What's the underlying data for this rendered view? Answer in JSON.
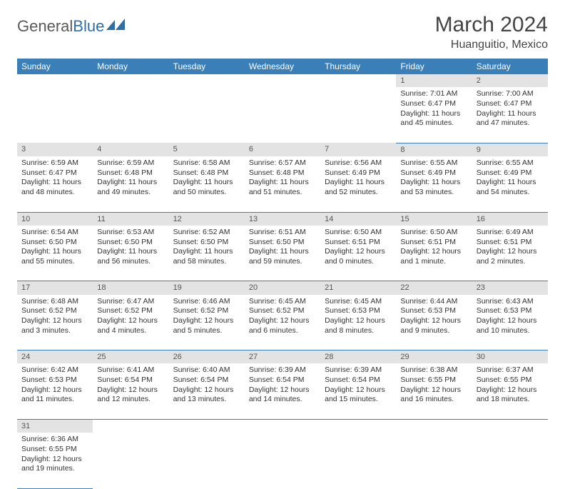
{
  "brand": {
    "part1": "General",
    "part2": "Blue"
  },
  "title": "March 2024",
  "location": "Huanguitio, Mexico",
  "colors": {
    "header_bg": "#3b7fb8",
    "header_text": "#ffffff",
    "daynum_bg": "#e3e3e3",
    "border": "#3b7fb8",
    "brand_blue": "#2f6fa7",
    "text": "#333333"
  },
  "weekdays": [
    "Sunday",
    "Monday",
    "Tuesday",
    "Wednesday",
    "Thursday",
    "Friday",
    "Saturday"
  ],
  "weeks": [
    [
      null,
      null,
      null,
      null,
      null,
      {
        "d": "1",
        "sr": "7:01 AM",
        "ss": "6:47 PM",
        "dl": "11 hours and 45 minutes."
      },
      {
        "d": "2",
        "sr": "7:00 AM",
        "ss": "6:47 PM",
        "dl": "11 hours and 47 minutes."
      }
    ],
    [
      {
        "d": "3",
        "sr": "6:59 AM",
        "ss": "6:47 PM",
        "dl": "11 hours and 48 minutes."
      },
      {
        "d": "4",
        "sr": "6:59 AM",
        "ss": "6:48 PM",
        "dl": "11 hours and 49 minutes."
      },
      {
        "d": "5",
        "sr": "6:58 AM",
        "ss": "6:48 PM",
        "dl": "11 hours and 50 minutes."
      },
      {
        "d": "6",
        "sr": "6:57 AM",
        "ss": "6:48 PM",
        "dl": "11 hours and 51 minutes."
      },
      {
        "d": "7",
        "sr": "6:56 AM",
        "ss": "6:49 PM",
        "dl": "11 hours and 52 minutes."
      },
      {
        "d": "8",
        "sr": "6:55 AM",
        "ss": "6:49 PM",
        "dl": "11 hours and 53 minutes."
      },
      {
        "d": "9",
        "sr": "6:55 AM",
        "ss": "6:49 PM",
        "dl": "11 hours and 54 minutes."
      }
    ],
    [
      {
        "d": "10",
        "sr": "6:54 AM",
        "ss": "6:50 PM",
        "dl": "11 hours and 55 minutes."
      },
      {
        "d": "11",
        "sr": "6:53 AM",
        "ss": "6:50 PM",
        "dl": "11 hours and 56 minutes."
      },
      {
        "d": "12",
        "sr": "6:52 AM",
        "ss": "6:50 PM",
        "dl": "11 hours and 58 minutes."
      },
      {
        "d": "13",
        "sr": "6:51 AM",
        "ss": "6:50 PM",
        "dl": "11 hours and 59 minutes."
      },
      {
        "d": "14",
        "sr": "6:50 AM",
        "ss": "6:51 PM",
        "dl": "12 hours and 0 minutes."
      },
      {
        "d": "15",
        "sr": "6:50 AM",
        "ss": "6:51 PM",
        "dl": "12 hours and 1 minute."
      },
      {
        "d": "16",
        "sr": "6:49 AM",
        "ss": "6:51 PM",
        "dl": "12 hours and 2 minutes."
      }
    ],
    [
      {
        "d": "17",
        "sr": "6:48 AM",
        "ss": "6:52 PM",
        "dl": "12 hours and 3 minutes."
      },
      {
        "d": "18",
        "sr": "6:47 AM",
        "ss": "6:52 PM",
        "dl": "12 hours and 4 minutes."
      },
      {
        "d": "19",
        "sr": "6:46 AM",
        "ss": "6:52 PM",
        "dl": "12 hours and 5 minutes."
      },
      {
        "d": "20",
        "sr": "6:45 AM",
        "ss": "6:52 PM",
        "dl": "12 hours and 6 minutes."
      },
      {
        "d": "21",
        "sr": "6:45 AM",
        "ss": "6:53 PM",
        "dl": "12 hours and 8 minutes."
      },
      {
        "d": "22",
        "sr": "6:44 AM",
        "ss": "6:53 PM",
        "dl": "12 hours and 9 minutes."
      },
      {
        "d": "23",
        "sr": "6:43 AM",
        "ss": "6:53 PM",
        "dl": "12 hours and 10 minutes."
      }
    ],
    [
      {
        "d": "24",
        "sr": "6:42 AM",
        "ss": "6:53 PM",
        "dl": "12 hours and 11 minutes."
      },
      {
        "d": "25",
        "sr": "6:41 AM",
        "ss": "6:54 PM",
        "dl": "12 hours and 12 minutes."
      },
      {
        "d": "26",
        "sr": "6:40 AM",
        "ss": "6:54 PM",
        "dl": "12 hours and 13 minutes."
      },
      {
        "d": "27",
        "sr": "6:39 AM",
        "ss": "6:54 PM",
        "dl": "12 hours and 14 minutes."
      },
      {
        "d": "28",
        "sr": "6:39 AM",
        "ss": "6:54 PM",
        "dl": "12 hours and 15 minutes."
      },
      {
        "d": "29",
        "sr": "6:38 AM",
        "ss": "6:55 PM",
        "dl": "12 hours and 16 minutes."
      },
      {
        "d": "30",
        "sr": "6:37 AM",
        "ss": "6:55 PM",
        "dl": "12 hours and 18 minutes."
      }
    ],
    [
      {
        "d": "31",
        "sr": "6:36 AM",
        "ss": "6:55 PM",
        "dl": "12 hours and 19 minutes."
      },
      null,
      null,
      null,
      null,
      null,
      null
    ]
  ],
  "labels": {
    "sunrise": "Sunrise:",
    "sunset": "Sunset:",
    "daylight": "Daylight:"
  }
}
